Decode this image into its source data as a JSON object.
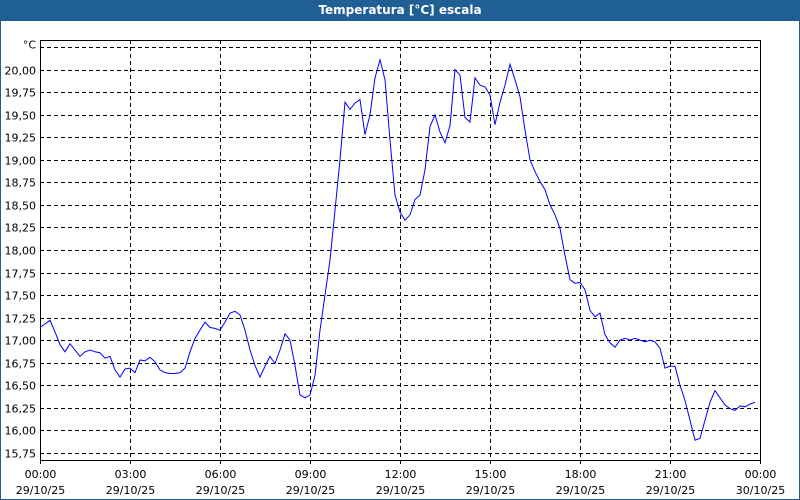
{
  "window": {
    "title": "Temperatura [°C] escala",
    "accent": "#1f5f96"
  },
  "chart_data": {
    "type": "line",
    "title": "Temperatura [°C] escala",
    "ylabel": "°C",
    "ylim": [
      15.67,
      20.33
    ],
    "yticks": [
      "15,75",
      "16,00",
      "16,25",
      "16,50",
      "16,75",
      "17,00",
      "17,25",
      "17,50",
      "17,75",
      "18,00",
      "18,25",
      "18,50",
      "18,75",
      "19,00",
      "19,25",
      "19,50",
      "19,75",
      "20,00"
    ],
    "ytick_values": [
      15.75,
      16,
      16.25,
      16.5,
      16.75,
      17,
      17.25,
      17.5,
      17.75,
      18,
      18.25,
      18.5,
      18.75,
      19,
      19.25,
      19.5,
      19.75,
      20
    ],
    "xlim": [
      "29/10/25 00:00",
      "30/10/25 00:00"
    ],
    "xticks": [
      {
        "time": "00:00",
        "date": "29/10/25"
      },
      {
        "time": "03:00",
        "date": "29/10/25"
      },
      {
        "time": "06:00",
        "date": "29/10/25"
      },
      {
        "time": "09:00",
        "date": "29/10/25"
      },
      {
        "time": "12:00",
        "date": "29/10/25"
      },
      {
        "time": "15:00",
        "date": "29/10/25"
      },
      {
        "time": "18:00",
        "date": "29/10/25"
      },
      {
        "time": "21:00",
        "date": "29/10/25"
      },
      {
        "time": "00:00",
        "date": "30/10/25"
      }
    ],
    "grid": true,
    "line_color": "#0000ff",
    "x": [
      "00:00",
      "00:10",
      "00:20",
      "00:30",
      "00:40",
      "00:50",
      "01:00",
      "01:10",
      "01:20",
      "01:30",
      "01:40",
      "01:50",
      "02:00",
      "02:10",
      "02:20",
      "02:30",
      "02:40",
      "02:50",
      "03:00",
      "03:10",
      "03:20",
      "03:30",
      "03:40",
      "03:50",
      "04:00",
      "04:10",
      "04:20",
      "04:30",
      "04:40",
      "04:50",
      "05:00",
      "05:10",
      "05:20",
      "05:30",
      "05:40",
      "05:50",
      "06:00",
      "06:10",
      "06:20",
      "06:30",
      "06:40",
      "06:50",
      "07:00",
      "07:10",
      "07:20",
      "07:30",
      "07:40",
      "07:50",
      "08:00",
      "08:10",
      "08:20",
      "08:30",
      "08:40",
      "08:50",
      "09:00",
      "09:10",
      "09:20",
      "09:30",
      "09:40",
      "09:50",
      "10:00",
      "10:10",
      "10:20",
      "10:30",
      "10:40",
      "10:50",
      "11:00",
      "11:10",
      "11:20",
      "11:30",
      "11:40",
      "11:50",
      "12:00",
      "12:10",
      "12:20",
      "12:30",
      "12:40",
      "12:50",
      "13:00",
      "13:10",
      "13:20",
      "13:30",
      "13:40",
      "13:50",
      "14:00",
      "14:10",
      "14:20",
      "14:30",
      "14:40",
      "14:50",
      "15:00",
      "15:10",
      "15:20",
      "15:30",
      "15:40",
      "15:50",
      "16:00",
      "16:10",
      "16:20",
      "16:30",
      "16:40",
      "16:50",
      "17:00",
      "17:10",
      "17:20",
      "17:30",
      "17:40",
      "17:50",
      "18:00",
      "18:10",
      "18:20",
      "18:30",
      "18:40",
      "18:50",
      "19:00",
      "19:10",
      "19:20",
      "19:30",
      "19:40",
      "19:50",
      "20:00",
      "20:10",
      "20:20",
      "20:30",
      "20:40",
      "20:50",
      "21:00",
      "21:10",
      "21:20",
      "21:30",
      "21:40",
      "21:50",
      "22:00",
      "22:10",
      "22:20",
      "22:30",
      "22:40",
      "22:50",
      "23:00",
      "23:10",
      "23:20",
      "23:30",
      "23:40",
      "23:50"
    ],
    "values": [
      17.14,
      17.18,
      17.22,
      17.09,
      16.95,
      16.87,
      16.96,
      16.89,
      16.82,
      16.87,
      16.89,
      16.87,
      16.86,
      16.8,
      16.82,
      16.67,
      16.59,
      16.68,
      16.69,
      16.64,
      16.78,
      16.77,
      16.81,
      16.76,
      16.67,
      16.64,
      16.63,
      16.63,
      16.64,
      16.69,
      16.87,
      17.02,
      17.11,
      17.2,
      17.14,
      17.13,
      17.11,
      17.2,
      17.3,
      17.32,
      17.28,
      17.11,
      16.89,
      16.72,
      16.59,
      16.71,
      16.82,
      16.74,
      16.89,
      17.07,
      17.0,
      16.72,
      16.39,
      16.36,
      16.39,
      16.61,
      17.11,
      17.5,
      17.89,
      18.44,
      19.0,
      19.64,
      19.56,
      19.63,
      19.67,
      19.28,
      19.5,
      19.91,
      20.11,
      19.89,
      19.22,
      18.61,
      18.42,
      18.33,
      18.39,
      18.56,
      18.61,
      18.89,
      19.37,
      19.5,
      19.31,
      19.19,
      19.38,
      20.0,
      19.94,
      19.47,
      19.42,
      19.91,
      19.83,
      19.81,
      19.72,
      19.39,
      19.64,
      19.83,
      20.06,
      19.89,
      19.7,
      19.33,
      19.0,
      18.87,
      18.76,
      18.67,
      18.5,
      18.39,
      18.24,
      17.94,
      17.67,
      17.63,
      17.64,
      17.56,
      17.33,
      17.26,
      17.3,
      17.06,
      16.97,
      16.92,
      17.0,
      17.02,
      17.0,
      17.02,
      17.0,
      16.98,
      17.0,
      16.98,
      16.91,
      16.69,
      16.71,
      16.71,
      16.5,
      16.33,
      16.11,
      15.89,
      15.91,
      16.11,
      16.31,
      16.44,
      16.36,
      16.28,
      16.24,
      16.22,
      16.27,
      16.26,
      16.29,
      16.31
    ]
  }
}
